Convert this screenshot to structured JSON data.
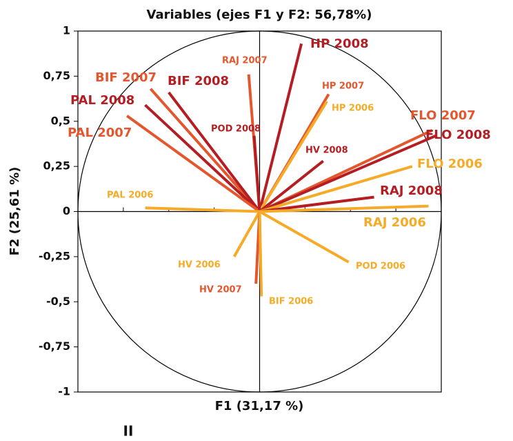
{
  "chart_data": {
    "type": "correlation-circle",
    "title": "Variables (ejes F1 y F2: 56,78%)",
    "x_label": "F1 (31,17 %)",
    "y_label": "F2 (25,61 %)",
    "annotation": "II",
    "xlim": [
      -1,
      1
    ],
    "ylim": [
      -1,
      1
    ],
    "xticks": [
      -1,
      -0.75,
      -0.5,
      -0.25,
      0,
      0.25,
      0.5,
      0.75,
      1
    ],
    "yticks": [
      {
        "value": -1,
        "label": "-1"
      },
      {
        "value": -0.75,
        "label": "-0,75"
      },
      {
        "value": -0.5,
        "label": "-0,5"
      },
      {
        "value": -0.25,
        "label": "-0,25"
      },
      0,
      {
        "value": 0.25,
        "label": "0,25"
      },
      {
        "value": 0.5,
        "label": "0,5"
      },
      {
        "value": 0.75,
        "label": "0,75"
      },
      1
    ],
    "variables": [
      {
        "name": "HP 2008",
        "x": 0.23,
        "y": 0.93,
        "color": "#b41e23"
      },
      {
        "name": "RAJ 2007",
        "x": -0.06,
        "y": 0.76,
        "color": "#e4572e"
      },
      {
        "name": "HP 2007",
        "x": 0.38,
        "y": 0.65,
        "color": "#e4572e"
      },
      {
        "name": "HP 2006",
        "x": 0.37,
        "y": 0.61,
        "color": "#f5ab27"
      },
      {
        "name": "BIF 2007",
        "x": -0.6,
        "y": 0.68,
        "color": "#e4572e"
      },
      {
        "name": "BIF 2008",
        "x": -0.5,
        "y": 0.66,
        "color": "#b41e23"
      },
      {
        "name": "PAL 2008",
        "x": -0.63,
        "y": 0.59,
        "color": "#b41e23"
      },
      {
        "name": "PAL 2007",
        "x": -0.73,
        "y": 0.53,
        "color": "#e4572e"
      },
      {
        "name": "POD 2008",
        "x": -0.03,
        "y": 0.42,
        "color": "#b41e23"
      },
      {
        "name": "HV 2008",
        "x": 0.35,
        "y": 0.28,
        "color": "#b41e23"
      },
      {
        "name": "FLO 2007",
        "x": 0.95,
        "y": 0.45,
        "color": "#e4572e"
      },
      {
        "name": "FLO 2008",
        "x": 0.97,
        "y": 0.42,
        "color": "#b41e23"
      },
      {
        "name": "FLO 2006",
        "x": 0.84,
        "y": 0.25,
        "color": "#f5ab27"
      },
      {
        "name": "RAJ 2008",
        "x": 0.63,
        "y": 0.08,
        "color": "#b41e23"
      },
      {
        "name": "RAJ 2006",
        "x": 0.93,
        "y": 0.03,
        "color": "#f5ab27"
      },
      {
        "name": "PAL 2006",
        "x": -0.63,
        "y": 0.02,
        "color": "#f5ab27"
      },
      {
        "name": "POD 2006",
        "x": 0.49,
        "y": -0.28,
        "color": "#f5ab27"
      },
      {
        "name": "HV 2006",
        "x": -0.14,
        "y": -0.25,
        "color": "#f5ab27"
      },
      {
        "name": "HV 2007",
        "x": -0.02,
        "y": -0.4,
        "color": "#e4572e"
      },
      {
        "name": "BIF 2006",
        "x": 0.01,
        "y": -0.47,
        "color": "#f5ab27"
      }
    ]
  }
}
